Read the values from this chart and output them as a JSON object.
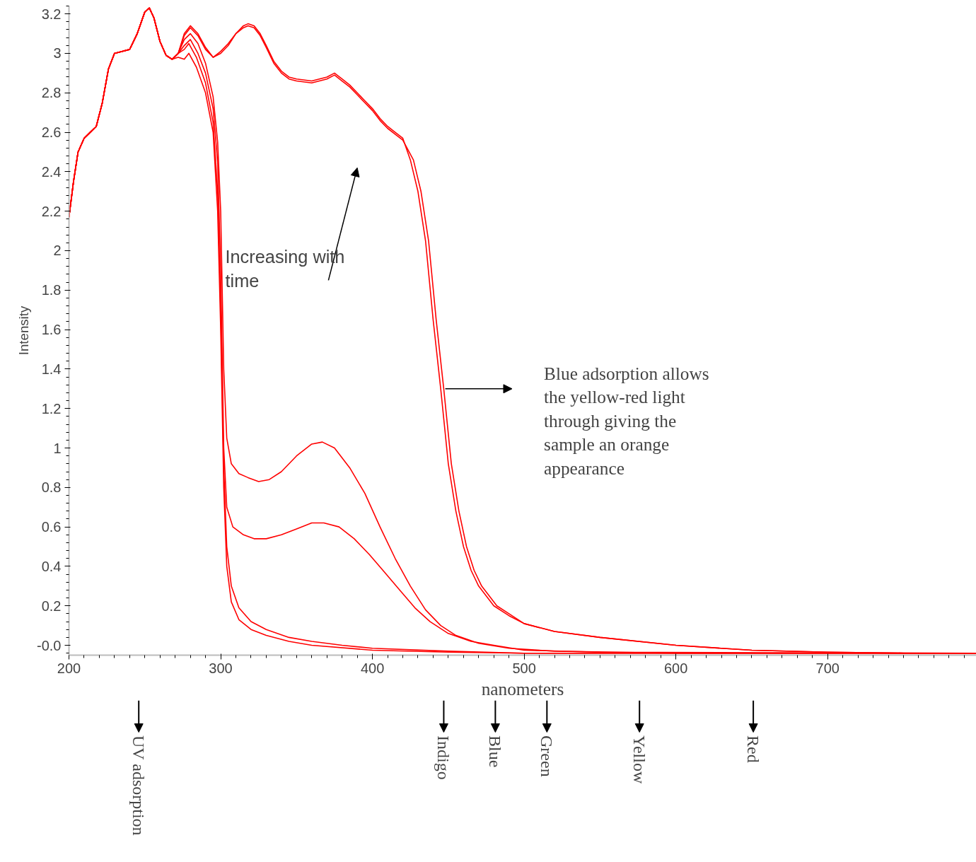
{
  "chart_data": {
    "type": "line",
    "xlabel": "nanometers",
    "ylabel": "Intensity",
    "xlim": [
      200,
      798
    ],
    "ylim": [
      -0.05,
      3.24
    ],
    "xticks": [
      200,
      300,
      400,
      500,
      600,
      700
    ],
    "yticks": [
      {
        "value": 0,
        "label": "-0.0"
      },
      0.2,
      0.4,
      0.6,
      0.8,
      1.0,
      1.2,
      1.4,
      1.6,
      1.8,
      2.0,
      2.2,
      2.4,
      2.6,
      2.8,
      3.0,
      3.2
    ],
    "grid": false,
    "marker": "none",
    "line_style": "solid",
    "series": [
      {
        "color": "#ff0000",
        "x": [
          200,
          203,
          206,
          210,
          214,
          218,
          222,
          226,
          230,
          235,
          240,
          245,
          250,
          253,
          256,
          260,
          264,
          268,
          272,
          276,
          280,
          285,
          290,
          295,
          300,
          305,
          310,
          315,
          318,
          322,
          326,
          330,
          335,
          340,
          345,
          350,
          360,
          370,
          375,
          380,
          385,
          390,
          395,
          400,
          405,
          410,
          415,
          420,
          425,
          430,
          435,
          440,
          445,
          450,
          455,
          460,
          465,
          470,
          480,
          490,
          500,
          520,
          550,
          600,
          650,
          700,
          750,
          798
        ],
        "values": [
          2.17,
          2.35,
          2.5,
          2.57,
          2.6,
          2.63,
          2.75,
          2.92,
          3.0,
          3.01,
          3.02,
          3.1,
          3.21,
          3.23,
          3.18,
          3.06,
          2.99,
          2.97,
          3.0,
          3.1,
          3.14,
          3.1,
          3.03,
          2.98,
          3.01,
          3.05,
          3.1,
          3.14,
          3.15,
          3.14,
          3.1,
          3.04,
          2.96,
          2.91,
          2.88,
          2.87,
          2.86,
          2.88,
          2.9,
          2.87,
          2.84,
          2.8,
          2.76,
          2.72,
          2.67,
          2.63,
          2.6,
          2.57,
          2.46,
          2.3,
          2.05,
          1.65,
          1.3,
          0.92,
          0.68,
          0.5,
          0.38,
          0.3,
          0.2,
          0.15,
          0.11,
          0.07,
          0.04,
          0.0,
          -0.025,
          -0.035,
          -0.04,
          -0.04
        ]
      },
      {
        "color": "#ff0000",
        "x": [
          200,
          203,
          206,
          210,
          214,
          218,
          222,
          226,
          230,
          235,
          240,
          245,
          250,
          253,
          256,
          260,
          264,
          268,
          272,
          276,
          280,
          285,
          290,
          295,
          300,
          305,
          310,
          315,
          318,
          322,
          326,
          330,
          335,
          340,
          345,
          350,
          360,
          370,
          375,
          380,
          385,
          390,
          395,
          400,
          405,
          410,
          415,
          420,
          427,
          432,
          437,
          442,
          447,
          452,
          457,
          462,
          467,
          472,
          482,
          490,
          500,
          520,
          550,
          600,
          650,
          700,
          750,
          798
        ],
        "values": [
          2.17,
          2.35,
          2.5,
          2.57,
          2.6,
          2.63,
          2.75,
          2.92,
          3.0,
          3.01,
          3.02,
          3.1,
          3.21,
          3.23,
          3.18,
          3.06,
          2.99,
          2.97,
          3.0,
          3.09,
          3.13,
          3.09,
          3.02,
          2.98,
          3.0,
          3.04,
          3.1,
          3.13,
          3.14,
          3.13,
          3.09,
          3.03,
          2.95,
          2.9,
          2.87,
          2.86,
          2.85,
          2.87,
          2.89,
          2.86,
          2.83,
          2.79,
          2.75,
          2.71,
          2.66,
          2.62,
          2.59,
          2.56,
          2.46,
          2.3,
          2.05,
          1.65,
          1.3,
          0.92,
          0.68,
          0.5,
          0.38,
          0.3,
          0.2,
          0.16,
          0.11,
          0.07,
          0.04,
          0.0,
          -0.025,
          -0.035,
          -0.04,
          -0.04
        ]
      },
      {
        "color": "#ff0000",
        "x": [
          200,
          203,
          206,
          210,
          214,
          218,
          222,
          226,
          230,
          235,
          240,
          245,
          250,
          253,
          256,
          260,
          264,
          268,
          272,
          276,
          280,
          285,
          290,
          295,
          298,
          300,
          302,
          304,
          307,
          312,
          318,
          325,
          332,
          340,
          350,
          360,
          367,
          375,
          385,
          395,
          405,
          415,
          425,
          435,
          445,
          455,
          470,
          490,
          520,
          600,
          798
        ],
        "values": [
          2.17,
          2.35,
          2.5,
          2.57,
          2.6,
          2.63,
          2.75,
          2.92,
          3.0,
          3.01,
          3.02,
          3.1,
          3.21,
          3.23,
          3.18,
          3.06,
          2.99,
          2.97,
          3.0,
          3.07,
          3.1,
          3.05,
          2.95,
          2.78,
          2.55,
          2.2,
          1.4,
          1.05,
          0.92,
          0.87,
          0.85,
          0.83,
          0.84,
          0.88,
          0.96,
          1.02,
          1.03,
          1.0,
          0.9,
          0.77,
          0.6,
          0.44,
          0.3,
          0.18,
          0.1,
          0.05,
          0.01,
          -0.015,
          -0.03,
          -0.04,
          -0.04
        ]
      },
      {
        "color": "#ff0000",
        "x": [
          200,
          203,
          206,
          210,
          214,
          218,
          222,
          226,
          230,
          235,
          240,
          245,
          250,
          253,
          256,
          260,
          264,
          268,
          272,
          276,
          280,
          285,
          290,
          295,
          298,
          300,
          302,
          304,
          308,
          315,
          322,
          330,
          340,
          350,
          360,
          368,
          378,
          388,
          398,
          408,
          418,
          428,
          438,
          450,
          465,
          480,
          500,
          550,
          798
        ],
        "values": [
          2.17,
          2.35,
          2.5,
          2.57,
          2.6,
          2.63,
          2.75,
          2.92,
          3.0,
          3.01,
          3.02,
          3.1,
          3.21,
          3.23,
          3.18,
          3.06,
          2.99,
          2.97,
          3.0,
          3.04,
          3.07,
          3.0,
          2.9,
          2.72,
          2.45,
          1.9,
          1.0,
          0.7,
          0.6,
          0.56,
          0.54,
          0.54,
          0.56,
          0.59,
          0.62,
          0.62,
          0.6,
          0.54,
          0.46,
          0.37,
          0.28,
          0.19,
          0.12,
          0.06,
          0.02,
          0.0,
          -0.025,
          -0.035,
          -0.04
        ]
      },
      {
        "color": "#ff0000",
        "x": [
          200,
          203,
          206,
          210,
          214,
          218,
          222,
          226,
          230,
          235,
          240,
          245,
          250,
          253,
          256,
          260,
          264,
          268,
          272,
          276,
          279,
          284,
          290,
          295,
          298,
          300,
          302,
          304,
          307,
          312,
          320,
          330,
          345,
          360,
          380,
          400,
          450,
          500,
          798
        ],
        "values": [
          2.17,
          2.35,
          2.5,
          2.57,
          2.6,
          2.63,
          2.75,
          2.92,
          3.0,
          3.01,
          3.02,
          3.1,
          3.21,
          3.23,
          3.18,
          3.06,
          2.99,
          2.97,
          3.0,
          3.02,
          3.05,
          2.98,
          2.85,
          2.65,
          2.3,
          1.7,
          0.9,
          0.5,
          0.3,
          0.19,
          0.12,
          0.08,
          0.04,
          0.02,
          0.0,
          -0.015,
          -0.03,
          -0.04,
          -0.04
        ]
      },
      {
        "color": "#ff0000",
        "x": [
          200,
          203,
          206,
          210,
          214,
          218,
          222,
          226,
          230,
          235,
          240,
          245,
          250,
          253,
          256,
          260,
          264,
          268,
          272,
          276,
          279,
          284,
          290,
          295,
          298,
          300,
          302,
          304,
          307,
          312,
          320,
          330,
          345,
          360,
          400,
          450,
          500,
          798
        ],
        "values": [
          2.17,
          2.35,
          2.5,
          2.57,
          2.6,
          2.63,
          2.75,
          2.92,
          3.0,
          3.01,
          3.02,
          3.1,
          3.21,
          3.23,
          3.18,
          3.06,
          2.99,
          2.97,
          2.98,
          2.97,
          3.0,
          2.93,
          2.8,
          2.6,
          2.2,
          1.6,
          0.8,
          0.4,
          0.22,
          0.13,
          0.08,
          0.05,
          0.02,
          0.0,
          -0.025,
          -0.035,
          -0.04,
          -0.04
        ]
      }
    ],
    "annotations": [
      "Increasing with time",
      "Blue adsorption allows the yellow-red light through giving the sample an orange appearance",
      "UV adsorption",
      "Indigo",
      "Blue",
      "Green",
      "Yellow",
      "Red"
    ]
  }
}
